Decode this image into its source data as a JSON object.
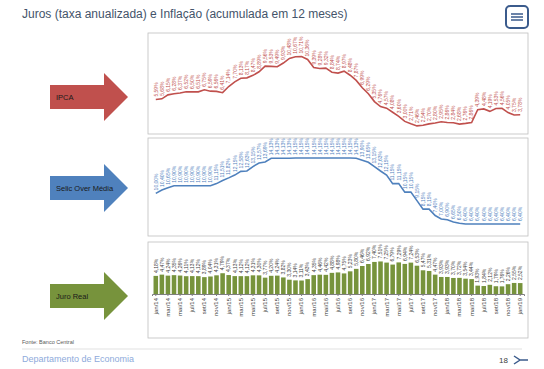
{
  "title": "Juros (taxa anualizada) e Inflação (acumulada em 12 meses)",
  "source": "Fonte: Banco Central",
  "footer": "Departamento de Economia",
  "page": "18",
  "chart_data": [
    {
      "type": "line",
      "categories": [
        "jan/14",
        null,
        "mar/14",
        null,
        "mai/14",
        null,
        "jul/14",
        null,
        "set/14",
        null,
        "nov/14",
        null,
        "jan/15",
        null,
        "mar/15",
        null,
        "mai/15",
        null,
        "jul/15",
        null,
        "set/15",
        null,
        "nov/15",
        null,
        "jan/16",
        null,
        "mar/16",
        null,
        "mai/16",
        null,
        "jul/16",
        null,
        "set/16",
        null,
        "nov/16",
        null,
        "jan/17",
        null,
        "mar/17",
        null,
        "mai/17",
        null,
        "jul/17",
        null,
        "set/17",
        null,
        "nov/17",
        null,
        "jan/18",
        null,
        "mar/18",
        null,
        "mai/18",
        null,
        "jul/18",
        null,
        "set/18",
        null,
        "nov/18",
        null,
        "jan/19"
      ],
      "series": [
        {
          "name": "IPCA",
          "color": "#c0504d",
          "values": [
            5.59,
            5.68,
            6.15,
            6.28,
            6.37,
            6.52,
            6.5,
            6.51,
            6.75,
            6.59,
            6.56,
            6.41,
            7.14,
            7.7,
            8.13,
            8.17,
            8.47,
            8.89,
            9.56,
            9.53,
            9.49,
            9.93,
            10.48,
            10.67,
            10.71,
            10.36,
            9.39,
            9.28,
            9.32,
            8.84,
            8.74,
            8.97,
            8.48,
            7.87,
            6.99,
            6.29,
            5.35,
            4.76,
            4.57,
            4.08,
            3.6,
            3.0,
            2.71,
            2.46,
            2.54,
            2.7,
            2.8,
            2.95,
            2.86,
            2.84,
            2.68,
            2.76,
            2.86,
            4.39,
            4.48,
            4.19,
            4.53,
            4.56,
            4.05,
            3.75,
            3.78
          ],
          "value_labels": [
            "5,59%",
            "5,68%",
            "6,15%",
            "6,28%",
            "6,37%",
            "6,52%",
            "6,50%",
            "6,51%",
            "6,75%",
            "6,59%",
            "6,56%",
            "6,41%",
            "7,14%",
            "7,70%",
            "8,13%",
            "8,17%",
            "8,47%",
            "8,89%",
            "9,56%",
            "9,53%",
            "9,49%",
            "9,93%",
            "10,48%",
            "10,67%",
            "10,71%",
            "10,36%",
            "9,39%",
            "9,28%",
            "9,32%",
            "8,84%",
            "8,74%",
            "8,97%",
            "8,48%",
            "7,87%",
            "6,99%",
            "6,29%",
            "5,35%",
            "4,76%",
            "4,57%",
            "4,08%",
            "3,60%",
            "3,00%",
            "2,71%",
            "2,46%",
            "2,54%",
            "2,70%",
            "2,80%",
            "2,95%",
            "2,86%",
            "2,84%",
            "2,68%",
            "2,76%",
            "2,86%",
            "4,39%",
            "4,48%",
            "4,19%",
            "4,53%",
            "4,56%",
            "4,05%",
            "3,75%",
            "3,78%"
          ]
        }
      ],
      "ylim": [
        1.5,
        13.5
      ],
      "data_labels": true,
      "tick_labels": false
    },
    {
      "type": "line",
      "categories": [
        "jan/14",
        null,
        "mar/14",
        null,
        "mai/14",
        null,
        "jul/14",
        null,
        "set/14",
        null,
        "nov/14",
        null,
        "jan/15",
        null,
        "mar/15",
        null,
        "mai/15",
        null,
        "jul/15",
        null,
        "set/15",
        null,
        "nov/15",
        null,
        "jan/16",
        null,
        "mar/16",
        null,
        "mai/16",
        null,
        "jul/16",
        null,
        "set/16",
        null,
        "nov/16",
        null,
        "jan/17",
        null,
        "mar/17",
        null,
        "mai/17",
        null,
        "jul/17",
        null,
        "set/17",
        null,
        "nov/17",
        null,
        "jan/18",
        null,
        "mar/18",
        null,
        "mai/18",
        null,
        "jul/18",
        null,
        "set/18",
        null,
        "nov/18",
        null,
        "jan/19"
      ],
      "series": [
        {
          "name": "Selic Over Média",
          "color": "#4f81bd",
          "values": [
            10.0,
            10.4,
            10.65,
            10.9,
            10.9,
            10.9,
            10.9,
            10.9,
            10.9,
            10.9,
            11.15,
            11.51,
            11.82,
            12.15,
            12.58,
            12.63,
            13.15,
            13.57,
            13.69,
            14.13,
            14.13,
            14.13,
            14.13,
            14.15,
            14.15,
            14.15,
            14.15,
            14.15,
            14.15,
            14.15,
            14.15,
            14.15,
            14.15,
            14.13,
            13.9,
            13.65,
            13.15,
            12.63,
            12.15,
            11.15,
            11.15,
            10.15,
            10.15,
            9.15,
            8.15,
            8.15,
            7.4,
            7.0,
            6.9,
            6.65,
            6.5,
            6.4,
            6.4,
            6.4,
            6.4,
            6.4,
            6.4,
            6.4,
            6.4,
            6.4,
            6.4
          ],
          "value_labels": [
            "10,00%",
            "10,40%",
            "10,65%",
            "10,90%",
            "10,90%",
            "10,90%",
            "10,90%",
            "10,90%",
            "10,90%",
            "10,90%",
            "11,15%",
            "11,51%",
            "11,82%",
            "12,15%",
            "12,58%",
            "12,63%",
            "13,15%",
            "13,57%",
            "13,69%",
            "14,13%",
            "14,13%",
            "14,13%",
            "14,13%",
            "14,15%",
            "14,15%",
            "14,15%",
            "14,15%",
            "14,15%",
            "14,15%",
            "14,15%",
            "14,15%",
            "14,15%",
            "14,15%",
            "14,13%",
            "13,90%",
            "13,65%",
            "13,15%",
            "12,63%",
            "12,15%",
            "11,15%",
            "11,15%",
            "10,15%",
            "10,15%",
            "9,15%",
            "8,15%",
            "8,15%",
            "7,40%",
            "7,00%",
            "6,90%",
            "6,65%",
            "6,50%",
            "6,40%",
            "6,40%",
            "6,40%",
            "6,40%",
            "6,40%",
            "6,40%",
            "6,40%",
            "6,40%",
            "6,40%",
            "6,40%"
          ]
        }
      ],
      "ylim": [
        5,
        16.5
      ],
      "data_labels": true,
      "tick_labels": false
    },
    {
      "type": "bar",
      "categories": [
        "jan/14",
        null,
        "mar/14",
        null,
        "mai/14",
        null,
        "jul/14",
        null,
        "set/14",
        null,
        "nov/14",
        null,
        "jan/15",
        null,
        "mar/15",
        null,
        "mai/15",
        null,
        "jul/15",
        null,
        "set/15",
        null,
        "nov/15",
        null,
        "jan/16",
        null,
        "mar/16",
        null,
        "mai/16",
        null,
        "jul/16",
        null,
        "set/16",
        null,
        "nov/16",
        null,
        "jan/17",
        null,
        "mar/17",
        null,
        "mai/17",
        null,
        "jul/17",
        null,
        "set/17",
        null,
        "nov/17",
        null,
        "jan/18",
        null,
        "mar/18",
        null,
        "mai/18",
        null,
        "jul/18",
        null,
        "set/18",
        null,
        "nov/18",
        null,
        "jan/19"
      ],
      "series": [
        {
          "name": "Juro Real",
          "color": "#77933c",
          "values": [
            4.18,
            4.47,
            4.24,
            4.35,
            4.26,
            4.11,
            4.13,
            4.12,
            3.89,
            4.04,
            4.31,
            4.79,
            4.37,
            4.13,
            4.12,
            4.12,
            4.31,
            4.3,
            3.77,
            4.2,
            4.24,
            3.82,
            3.3,
            3.14,
            3.11,
            3.43,
            4.35,
            4.46,
            4.42,
            4.88,
            4.98,
            4.75,
            5.23,
            5.8,
            6.46,
            6.92,
            7.4,
            7.51,
            7.25,
            6.79,
            7.29,
            6.94,
            7.24,
            6.53,
            5.47,
            5.31,
            4.47,
            3.93,
            3.93,
            3.7,
            3.72,
            3.54,
            3.44,
            1.93,
            1.84,
            2.12,
            1.79,
            1.76,
            2.26,
            2.55,
            2.52
          ],
          "value_labels": [
            "4,18%",
            "4,47%",
            "4,24%",
            "4,35%",
            "4,26%",
            "4,11%",
            "4,13%",
            "4,12%",
            "3,89%",
            "4,04%",
            "4,31%",
            "4,79%",
            "4,37%",
            "4,13%",
            "4,12%",
            "4,12%",
            "4,31%",
            "4,30%",
            "3,77%",
            "4,20%",
            "4,24%",
            "3,82%",
            "3,30%",
            "3,14%",
            "3,11%",
            "3,43%",
            "4,35%",
            "4,46%",
            "4,42%",
            "4,88%",
            "4,98%",
            "4,75%",
            "5,23%",
            "5,80%",
            "6,46%",
            "6,92%",
            "7,40%",
            "7,51%",
            "7,25%",
            "6,79%",
            "7,29%",
            "6,94%",
            "7,24%",
            "6,53%",
            "5,47%",
            "5,31%",
            "4,47%",
            "3,93%",
            "3,93%",
            "3,70%",
            "3,72%",
            "3,54%",
            "3,44%",
            "1,93%",
            "1,84%",
            "2,12%",
            "1,79%",
            "1,76%",
            "2,26%",
            "2,55%",
            "2,52%"
          ]
        }
      ],
      "ylim": [
        0,
        12
      ],
      "data_labels": true,
      "tick_labels": "x"
    }
  ]
}
